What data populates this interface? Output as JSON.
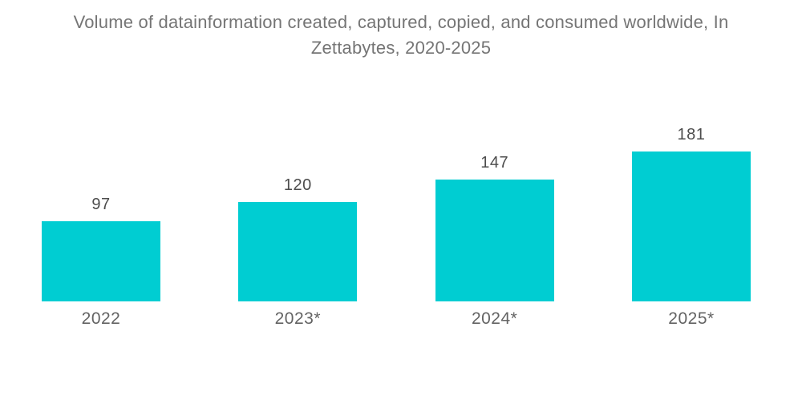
{
  "header": {
    "title_line1": "Volume of datainformation created, captured, copied, and consumed worldwide, In",
    "title_line2": "Zettabytes, 2020-2025"
  },
  "chart_data": {
    "type": "bar",
    "title": "Volume of datainformation created, captured, copied, and consumed worldwide, In Zettabytes, 2020-2025",
    "categories": [
      "2022",
      "2023*",
      "2024*",
      "2025*"
    ],
    "values": [
      97,
      120,
      147,
      181
    ],
    "unit": "Zettabytes",
    "xlabel": "",
    "ylabel": "",
    "ylim": [
      0,
      195
    ],
    "grid": false,
    "legend": false,
    "axes_hidden": true,
    "value_labels_position": "above-bar",
    "colors": {
      "bar": "#00CDD2",
      "title": "#757575",
      "value_label": "#4d4d4d",
      "axis_label": "#636363",
      "background": "#ffffff"
    }
  }
}
